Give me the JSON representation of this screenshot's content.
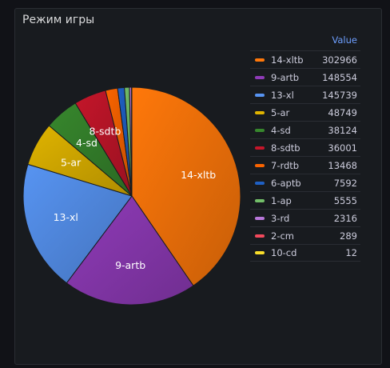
{
  "panel": {
    "title": "Режим игры"
  },
  "legend": {
    "header": "Value"
  },
  "chart_data": {
    "type": "pie",
    "title": "Режим игры",
    "slices": [
      {
        "name": "14-xltb",
        "value": 302966,
        "color": "#ff780a"
      },
      {
        "name": "9-artb",
        "value": 148554,
        "color": "#8f3bb8"
      },
      {
        "name": "13-xl",
        "value": 145739,
        "color": "#5794f2"
      },
      {
        "name": "5-ar",
        "value": 48749,
        "color": "#e0b400"
      },
      {
        "name": "4-sd",
        "value": 38124,
        "color": "#37872d"
      },
      {
        "name": "8-sdtb",
        "value": 36001,
        "color": "#c4162a"
      },
      {
        "name": "7-rdtb",
        "value": 13468,
        "color": "#fa6400"
      },
      {
        "name": "6-aptb",
        "value": 7592,
        "color": "#1f60c4"
      },
      {
        "name": "1-ap",
        "value": 5555,
        "color": "#73bf69"
      },
      {
        "name": "3-rd",
        "value": 2316,
        "color": "#b877d9"
      },
      {
        "name": "2-cm",
        "value": 289,
        "color": "#f2495c"
      },
      {
        "name": "10-cd",
        "value": 12,
        "color": "#fade2a"
      }
    ],
    "label_names": [
      "14-xltb",
      "9-artb",
      "13-xl",
      "5-ar",
      "4-sd",
      "8-sdtb"
    ],
    "legend_position": "right"
  }
}
